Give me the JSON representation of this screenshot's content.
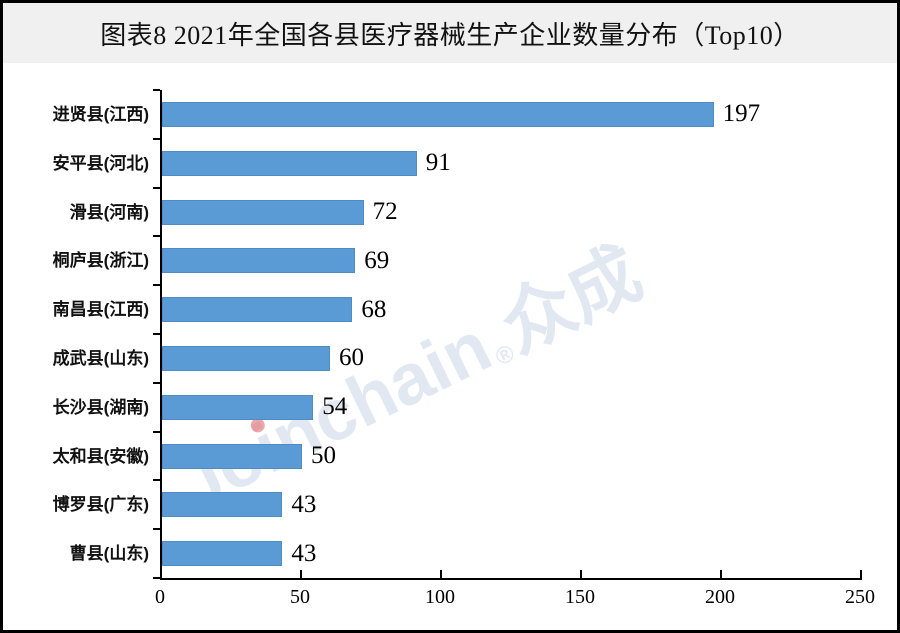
{
  "title": "图表8 2021年全国各县医疗器械生产企业数量分布（Top10）",
  "watermark": {
    "brand": "Joinchain",
    "reg_mark": "®",
    "suffix": "众成"
  },
  "colors": {
    "bar": "#5B9BD5",
    "bar_border": "#4e8cc6",
    "title_bg": "#f0f0f0",
    "axis": "#000000",
    "watermark_text": "rgba(186,199,223,0.42)",
    "watermark_dot": "rgba(226,96,96,0.55)"
  },
  "chart_data": {
    "type": "bar",
    "orientation": "horizontal",
    "title": "图表8 2021年全国各县医疗器械生产企业数量分布（Top10）",
    "categories": [
      "进贤县(江西)",
      "安平县(河北)",
      "滑县(河南)",
      "桐庐县(浙江)",
      "南昌县(江西)",
      "成武县(山东)",
      "长沙县(湖南)",
      "太和县(安徽)",
      "博罗县(广东)",
      "曹县(山东)"
    ],
    "values": [
      197,
      91,
      72,
      69,
      68,
      60,
      54,
      50,
      43,
      43
    ],
    "xlabel": "",
    "ylabel": "",
    "xlim": [
      0,
      250
    ],
    "x_ticks": [
      0,
      50,
      100,
      150,
      200,
      250
    ],
    "grid": false,
    "legend": null,
    "value_labels_shown": true
  }
}
